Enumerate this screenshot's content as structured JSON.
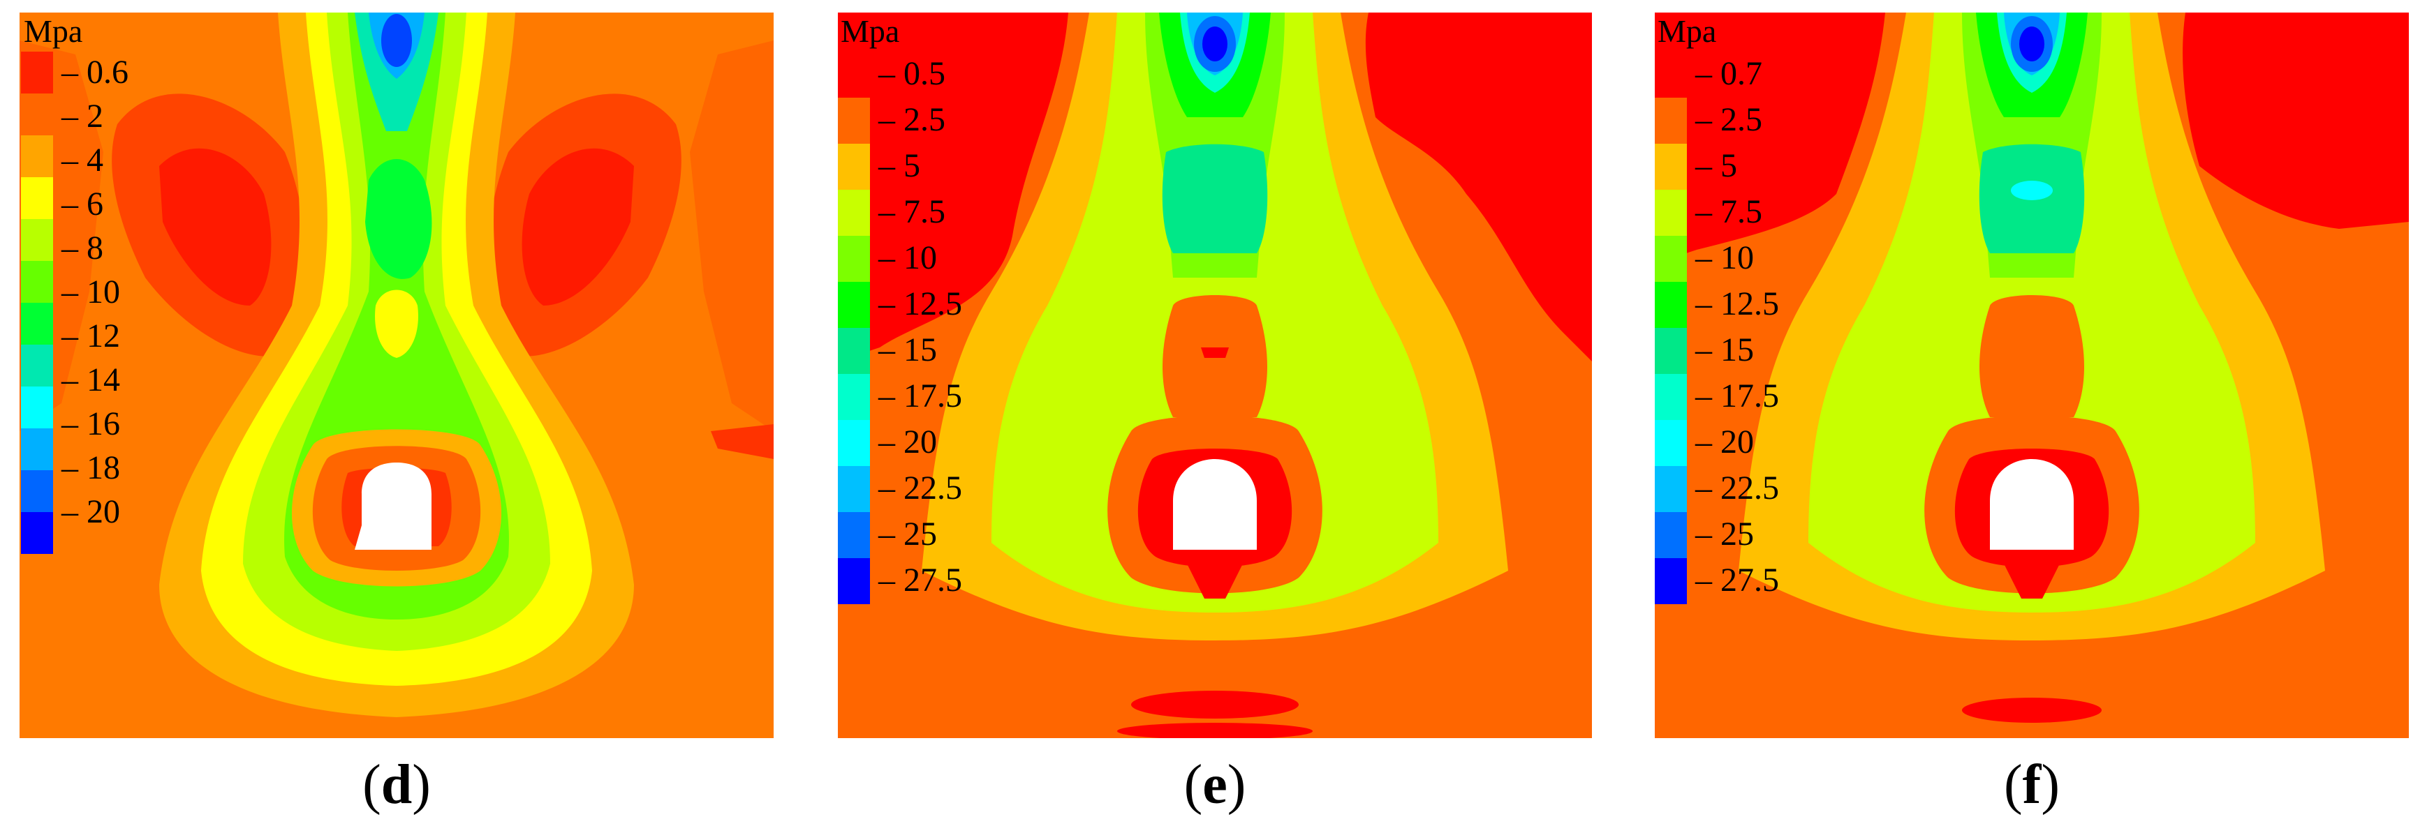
{
  "palette": [
    "#ff0000",
    "#ff6600",
    "#ffa500",
    "#ffd000",
    "#ffff00",
    "#c8ff00",
    "#7cff00",
    "#00ff00",
    "#00e890",
    "#00ffee",
    "#00c8ff",
    "#0088ff",
    "#0044ff",
    "#0000ff"
  ],
  "panels": [
    {
      "id": "d",
      "caption_letter": "d",
      "legend_unit": "Mpa",
      "legend_ticks": [
        "0.6",
        "2",
        "4",
        "6",
        "8",
        "10",
        "12",
        "14",
        "16",
        "18",
        "20"
      ],
      "legend_colors": [
        "#ff2200",
        "#ff6600",
        "#ffa500",
        "#ffff00",
        "#b8ff00",
        "#66ff00",
        "#00ff33",
        "#00e8b0",
        "#00ffff",
        "#00b0ff",
        "#0066ff",
        "#0000ff"
      ]
    },
    {
      "id": "e",
      "caption_letter": "e",
      "legend_unit": "Mpa",
      "legend_ticks": [
        "0.5",
        "2.5",
        "5",
        "7.5",
        "10",
        "12.5",
        "15",
        "17.5",
        "20",
        "22.5",
        "25",
        "27.5"
      ],
      "legend_colors": [
        "#ff0000",
        "#ff6600",
        "#ffc000",
        "#c8ff00",
        "#7cff00",
        "#00ff00",
        "#00e888",
        "#00ffcc",
        "#00ffff",
        "#00c0ff",
        "#0070ff",
        "#0000ff"
      ]
    },
    {
      "id": "f",
      "caption_letter": "f",
      "legend_unit": "Mpa",
      "legend_ticks": [
        "0.7",
        "2.5",
        "5",
        "7.5",
        "10",
        "12.5",
        "15",
        "17.5",
        "20",
        "22.5",
        "25",
        "27.5"
      ],
      "legend_colors": [
        "#ff0000",
        "#ff6600",
        "#ffc000",
        "#c8ff00",
        "#7cff00",
        "#00ff00",
        "#00e888",
        "#00ffcc",
        "#00ffff",
        "#00c0ff",
        "#0070ff",
        "#0000ff"
      ]
    }
  ]
}
